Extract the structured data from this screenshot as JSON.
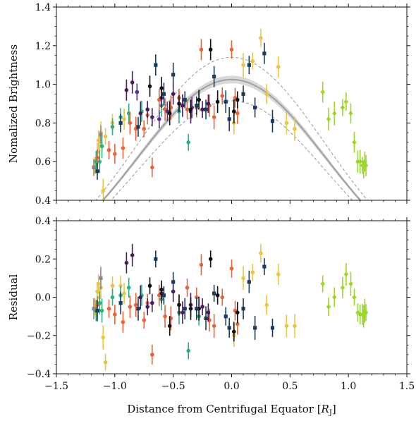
{
  "chart_data": [
    {
      "type": "scatter",
      "panel": "top",
      "title": "",
      "xlabel": "",
      "ylabel": "Nomalized Brightness",
      "xlim": [
        -1.5,
        1.5
      ],
      "ylim": [
        0.4,
        1.4
      ],
      "xticks": [
        "−1.5",
        "−1.0",
        "−0.5",
        "0.0",
        "0.5",
        "1.0",
        "1.5"
      ],
      "xticklabels_visible": false,
      "yticks": [
        "0.4",
        "0.6",
        "0.8",
        "1.0",
        "1.2",
        "1.4"
      ],
      "yticks_values": [
        0.4,
        0.6,
        0.8,
        1.0,
        1.2,
        1.4
      ],
      "grid": false,
      "fit_curve": {
        "amplitude": 1.025,
        "center": 0.0,
        "width": 1.0,
        "band": 0.02,
        "style": "solid gray with shaded band"
      },
      "envelope_curves": [
        {
          "amplitude": 1.14,
          "style": "dashed gray"
        },
        {
          "amplitude": 0.915,
          "style": "dashed gray"
        }
      ],
      "series": [
        {
          "color": "#e8c547",
          "marker": "circle",
          "points": [
            [
              -1.17,
              0.58
            ],
            [
              -1.15,
              0.65
            ],
            [
              -1.14,
              0.71
            ],
            [
              -1.13,
              0.68
            ],
            [
              -1.12,
              0.75
            ],
            [
              -1.1,
              0.45
            ],
            [
              -1.08,
              0.73
            ],
            [
              -1.02,
              0.8
            ],
            [
              -0.95,
              0.8
            ],
            [
              -0.92,
              0.82
            ],
            [
              0.02,
              0.8
            ],
            [
              0.1,
              1.1
            ],
            [
              0.18,
              1.12
            ],
            [
              0.25,
              1.24
            ],
            [
              0.3,
              0.95
            ],
            [
              0.4,
              1.09
            ],
            [
              0.47,
              0.8
            ],
            [
              0.54,
              0.77
            ]
          ]
        },
        {
          "color": "#2ab07f",
          "marker": "circle",
          "points": [
            [
              -1.16,
              0.6
            ],
            [
              -1.13,
              0.6
            ],
            [
              -1.11,
              0.68
            ],
            [
              -1.02,
              0.78
            ],
            [
              -0.95,
              0.83
            ],
            [
              -0.88,
              0.85
            ],
            [
              -0.77,
              0.86
            ],
            [
              -0.6,
              0.89
            ],
            [
              -0.45,
              0.86
            ],
            [
              -0.37,
              0.7
            ],
            [
              -0.28,
              0.92
            ]
          ]
        },
        {
          "color": "#e8643a",
          "marker": "circle",
          "points": [
            [
              -1.15,
              0.62
            ],
            [
              -1.05,
              0.66
            ],
            [
              -1.0,
              0.64
            ],
            [
              -0.93,
              0.67
            ],
            [
              -0.87,
              0.8
            ],
            [
              -0.82,
              0.77
            ],
            [
              -0.75,
              0.77
            ],
            [
              -0.72,
              0.84
            ],
            [
              -0.68,
              0.57
            ],
            [
              -0.62,
              0.92
            ],
            [
              -0.57,
              0.87
            ],
            [
              -0.52,
              0.88
            ],
            [
              -0.45,
              0.93
            ],
            [
              -0.38,
              0.87
            ],
            [
              -0.3,
              0.88
            ],
            [
              -0.26,
              1.18
            ],
            [
              -0.19,
              0.89
            ],
            [
              -0.15,
              0.83
            ],
            [
              -0.08,
              0.94
            ],
            [
              0.0,
              1.18
            ],
            [
              0.03,
              0.93
            ],
            [
              0.05,
              0.85
            ]
          ]
        },
        {
          "color": "#4b1a67",
          "marker": "circle",
          "points": [
            [
              -0.9,
              0.97
            ],
            [
              -0.85,
              1.01
            ],
            [
              -0.78,
              0.85
            ],
            [
              -0.72,
              0.87
            ],
            [
              -0.68,
              0.83
            ],
            [
              -0.6,
              0.93
            ],
            [
              -0.5,
              0.95
            ],
            [
              -0.42,
              0.89
            ],
            [
              -0.35,
              0.86
            ],
            [
              -0.25,
              0.87
            ],
            [
              -0.2,
              0.9
            ]
          ]
        },
        {
          "color": "#5a2e8a",
          "marker": "circle",
          "points": [
            [
              -0.81,
              0.96
            ],
            [
              -0.62,
              0.82
            ],
            [
              -0.55,
              0.86
            ],
            [
              -0.34,
              0.88
            ]
          ]
        },
        {
          "color": "#111111",
          "marker": "circle",
          "points": [
            [
              -0.7,
              0.99
            ],
            [
              -0.6,
              0.98
            ],
            [
              -0.53,
              0.85
            ],
            [
              -0.45,
              0.9
            ],
            [
              -0.35,
              0.87
            ],
            [
              -0.28,
              0.92
            ],
            [
              -0.18,
              1.18
            ],
            [
              -0.12,
              0.91
            ],
            [
              0.02,
              0.86
            ],
            [
              0.05,
              0.92
            ]
          ]
        },
        {
          "color": "#1b3a5c",
          "marker": "square",
          "points": [
            [
              -1.15,
              0.55
            ],
            [
              -0.95,
              0.8
            ],
            [
              -0.8,
              0.78
            ],
            [
              -0.65,
              1.1
            ],
            [
              -0.58,
              0.95
            ],
            [
              -0.5,
              1.05
            ],
            [
              -0.4,
              0.92
            ],
            [
              -0.3,
              0.89
            ],
            [
              -0.22,
              0.87
            ],
            [
              -0.15,
              1.04
            ],
            [
              -0.05,
              0.91
            ],
            [
              -0.02,
              0.82
            ],
            [
              0.1,
              0.95
            ],
            [
              0.15,
              1.1
            ],
            [
              0.2,
              0.88
            ],
            [
              0.28,
              1.16
            ],
            [
              0.35,
              0.81
            ]
          ]
        },
        {
          "color": "#9dd62b",
          "marker": "diamond",
          "points": [
            [
              0.78,
              0.96
            ],
            [
              0.83,
              0.82
            ],
            [
              0.88,
              0.85
            ],
            [
              0.95,
              0.88
            ],
            [
              0.98,
              0.91
            ],
            [
              1.02,
              0.85
            ],
            [
              1.05,
              0.7
            ],
            [
              1.08,
              0.6
            ],
            [
              1.1,
              0.6
            ],
            [
              1.12,
              0.58
            ],
            [
              1.13,
              0.56
            ],
            [
              1.14,
              0.6
            ],
            [
              1.15,
              0.58
            ]
          ]
        },
        {
          "color": "#888888",
          "marker": "square",
          "points": [
            [
              -1.18,
              0.57
            ],
            [
              -1.12,
              0.74
            ]
          ]
        }
      ]
    },
    {
      "type": "scatter",
      "panel": "bottom",
      "title": "",
      "xlabel": "Distance from Centrifugal Equator [R_J]",
      "ylabel": "Residual",
      "xlim": [
        -1.5,
        1.5
      ],
      "ylim": [
        -0.4,
        0.4
      ],
      "xticks": [
        "−1.5",
        "−1.0",
        "−0.5",
        "0.0",
        "0.5",
        "1.0",
        "1.5"
      ],
      "xticks_values": [
        -1.5,
        -1.0,
        -0.5,
        0.0,
        0.5,
        1.0,
        1.5
      ],
      "yticks": [
        "−0.4",
        "−0.2",
        "0.0",
        "0.2",
        "0.4"
      ],
      "yticks_values": [
        -0.4,
        -0.2,
        0.0,
        0.2,
        0.4
      ],
      "grid": false,
      "series": [
        {
          "color": "#e8c547",
          "marker": "circle",
          "points": [
            [
              -1.17,
              -0.05
            ],
            [
              -1.15,
              0.03
            ],
            [
              -1.14,
              0.07
            ],
            [
              -1.13,
              0.0
            ],
            [
              -1.12,
              0.05
            ],
            [
              -1.1,
              -0.21
            ],
            [
              -1.08,
              -0.34
            ],
            [
              -1.02,
              0.06
            ],
            [
              -0.95,
              0.06
            ],
            [
              -0.92,
              0.02
            ],
            [
              0.02,
              -0.2
            ],
            [
              0.1,
              0.1
            ],
            [
              0.18,
              0.13
            ],
            [
              0.25,
              0.23
            ],
            [
              0.3,
              -0.04
            ],
            [
              0.4,
              0.12
            ],
            [
              0.47,
              -0.15
            ],
            [
              0.54,
              -0.15
            ]
          ]
        },
        {
          "color": "#2ab07f",
          "marker": "circle",
          "points": [
            [
              -1.16,
              -0.07
            ],
            [
              -1.13,
              -0.03
            ],
            [
              -1.11,
              -0.07
            ],
            [
              -1.02,
              0.0
            ],
            [
              -0.95,
              0.01
            ],
            [
              -0.88,
              0.05
            ],
            [
              -0.77,
              0.01
            ],
            [
              -0.6,
              -0.01
            ],
            [
              -0.45,
              -0.08
            ],
            [
              -0.37,
              -0.28
            ],
            [
              -0.28,
              -0.1
            ]
          ]
        },
        {
          "color": "#e8643a",
          "marker": "circle",
          "points": [
            [
              -1.15,
              -0.04
            ],
            [
              -1.05,
              -0.06
            ],
            [
              -1.0,
              -0.09
            ],
            [
              -0.93,
              -0.13
            ],
            [
              -0.87,
              -0.05
            ],
            [
              -0.82,
              -0.04
            ],
            [
              -0.75,
              -0.12
            ],
            [
              -0.72,
              -0.03
            ],
            [
              -0.68,
              -0.3
            ],
            [
              -0.62,
              0.01
            ],
            [
              -0.57,
              -0.1
            ],
            [
              -0.52,
              -0.11
            ],
            [
              -0.45,
              -0.04
            ],
            [
              -0.38,
              0.05
            ],
            [
              -0.3,
              0.0
            ],
            [
              -0.26,
              0.17
            ],
            [
              -0.19,
              -0.12
            ],
            [
              -0.15,
              -0.15
            ],
            [
              -0.08,
              0.0
            ],
            [
              0.0,
              0.15
            ],
            [
              0.03,
              -0.07
            ],
            [
              0.05,
              -0.14
            ]
          ]
        },
        {
          "color": "#4b1a67",
          "marker": "circle",
          "points": [
            [
              -0.9,
              0.18
            ],
            [
              -0.85,
              0.22
            ],
            [
              -0.78,
              0.0
            ],
            [
              -0.72,
              -0.05
            ],
            [
              -0.68,
              -0.03
            ],
            [
              -0.6,
              0.02
            ],
            [
              -0.5,
              0.03
            ],
            [
              -0.42,
              -0.08
            ],
            [
              -0.35,
              -0.04
            ],
            [
              -0.25,
              -0.05
            ],
            [
              -0.2,
              -0.08
            ]
          ]
        },
        {
          "color": "#111111",
          "marker": "circle",
          "points": [
            [
              -0.7,
              0.06
            ],
            [
              -0.6,
              0.04
            ],
            [
              -0.53,
              -0.15
            ],
            [
              -0.45,
              -0.04
            ],
            [
              -0.35,
              -0.06
            ],
            [
              -0.28,
              -0.06
            ],
            [
              -0.18,
              0.2
            ],
            [
              -0.12,
              0.01
            ],
            [
              0.02,
              -0.18
            ],
            [
              0.05,
              -0.08
            ]
          ]
        },
        {
          "color": "#1b3a5c",
          "marker": "square",
          "points": [
            [
              -1.15,
              -0.07
            ],
            [
              -0.95,
              -0.03
            ],
            [
              -0.8,
              -0.06
            ],
            [
              -0.65,
              0.2
            ],
            [
              -0.58,
              0.01
            ],
            [
              -0.5,
              0.08
            ],
            [
              -0.4,
              -0.06
            ],
            [
              -0.3,
              -0.06
            ],
            [
              -0.22,
              -0.11
            ],
            [
              -0.15,
              0.02
            ],
            [
              -0.05,
              -0.1
            ],
            [
              -0.02,
              -0.16
            ],
            [
              0.1,
              -0.06
            ],
            [
              0.15,
              0.08
            ],
            [
              0.2,
              -0.16
            ],
            [
              0.28,
              0.16
            ],
            [
              0.35,
              -0.16
            ]
          ]
        },
        {
          "color": "#9dd62b",
          "marker": "diamond",
          "points": [
            [
              0.78,
              0.07
            ],
            [
              0.83,
              -0.05
            ],
            [
              0.88,
              0.0
            ],
            [
              0.95,
              0.05
            ],
            [
              0.98,
              0.12
            ],
            [
              1.02,
              0.07
            ],
            [
              1.05,
              0.0
            ],
            [
              1.08,
              -0.08
            ],
            [
              1.1,
              -0.09
            ],
            [
              1.12,
              -0.09
            ],
            [
              1.13,
              -0.1
            ],
            [
              1.14,
              -0.07
            ],
            [
              1.15,
              -0.08
            ]
          ]
        },
        {
          "color": "#888888",
          "marker": "square",
          "points": [
            [
              -1.18,
              -0.06
            ],
            [
              -1.12,
              0.1
            ]
          ]
        }
      ]
    }
  ]
}
